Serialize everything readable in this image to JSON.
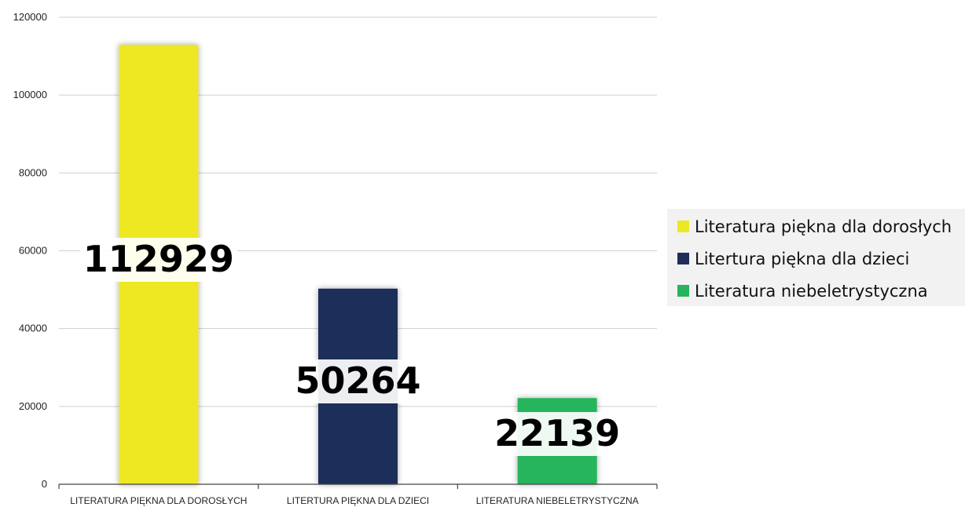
{
  "chart_data": {
    "type": "bar",
    "categories": [
      "LITERATURA PIĘKNA DLA DOROSŁYCH",
      "LITERTURA PIĘKNA DLA DZIECI",
      "LITERATURA NIEBELETRYSTYCZNA"
    ],
    "values": [
      112929,
      50264,
      22139
    ],
    "data_labels": [
      "112929",
      "50264",
      "22139"
    ],
    "colors": [
      "#ede824",
      "#1f2d5a",
      "#27b45c"
    ],
    "legend": {
      "position": "right",
      "entries": [
        "Literatura piękna dla dorosłych",
        "Litertura piękna dla dzieci",
        "Literatura niebeletrystyczna"
      ]
    },
    "ylim": [
      0,
      120000
    ],
    "yticks": [
      0,
      20000,
      40000,
      60000,
      80000,
      100000,
      120000
    ],
    "ytick_labels": [
      "0",
      "20000",
      "40000",
      "60000",
      "80000",
      "100000",
      "120000"
    ],
    "grid": true,
    "title": "",
    "xlabel": "",
    "ylabel": ""
  }
}
